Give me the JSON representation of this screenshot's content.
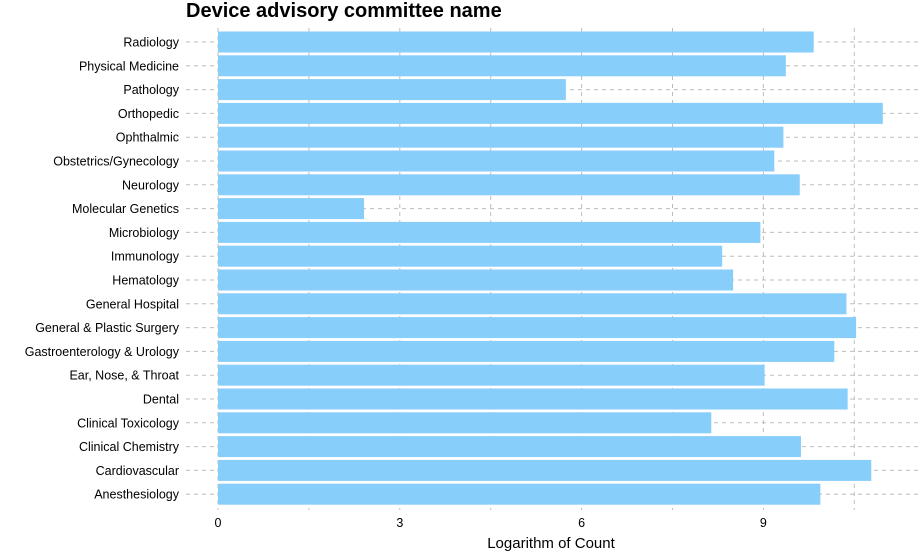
{
  "chart_data": {
    "type": "bar",
    "orientation": "horizontal",
    "title": "Device advisory committee name",
    "xlabel": "Logarithm of Count",
    "ylabel": "",
    "xlim": [
      0,
      11.1
    ],
    "xticks": [
      0,
      3,
      6,
      9
    ],
    "grid": true,
    "bar_color": "#87CEFA",
    "categories": [
      "Radiology",
      "Physical Medicine",
      "Pathology",
      "Orthopedic",
      "Ophthalmic",
      "Obstetrics/Gynecology",
      "Neurology",
      "Molecular Genetics",
      "Microbiology",
      "Immunology",
      "Hematology",
      "General Hospital",
      "General & Plastic Surgery",
      "Gastroenterology & Urology",
      "Ear, Nose, & Throat",
      "Dental",
      "Clinical Toxicology",
      "Clinical Chemistry",
      "Cardiovascular",
      "Anesthesiology"
    ],
    "values": [
      9.83,
      9.37,
      5.74,
      10.97,
      9.33,
      9.18,
      9.6,
      2.41,
      8.95,
      8.32,
      8.5,
      10.37,
      10.53,
      10.17,
      9.02,
      10.39,
      8.14,
      9.62,
      10.78,
      9.94
    ]
  }
}
